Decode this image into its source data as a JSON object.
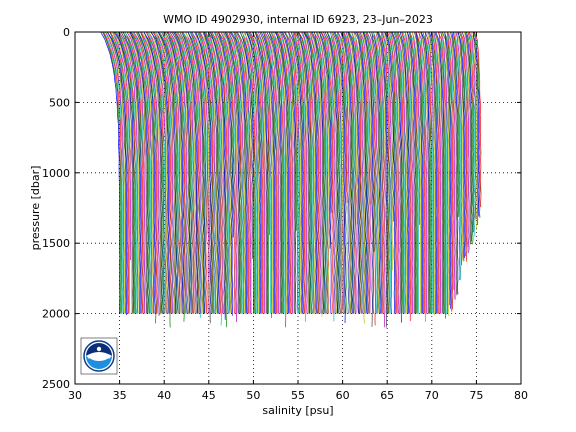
{
  "chart_data": {
    "type": "line",
    "title": "WMO ID 4902930, internal ID 6923, 23–Jun–2023",
    "xlabel": "salinity [psu]",
    "ylabel": "pressure [dbar]",
    "xlim": [
      30,
      80
    ],
    "ylim": [
      0,
      2500
    ],
    "y_reversed": true,
    "x_ticks": [
      30,
      35,
      40,
      45,
      50,
      55,
      60,
      65,
      70,
      75,
      80
    ],
    "y_ticks": [
      0,
      500,
      1000,
      1500,
      2000,
      2500
    ],
    "grid": "dotted",
    "logo": "noaa-logo",
    "profile_count": 360,
    "first_profile": {
      "surface_salinity": 33.0,
      "deep_salinity": 35.0,
      "max_pressure": 2000
    },
    "last_profile": {
      "surface_salinity": 75.0,
      "deep_salinity": 75.5,
      "max_pressure": 1200
    },
    "profile_colors": [
      "#0000ff",
      "#008000",
      "#ff0000",
      "#00bfbf",
      "#bf00bf",
      "#bfbf00",
      "#404040"
    ]
  }
}
